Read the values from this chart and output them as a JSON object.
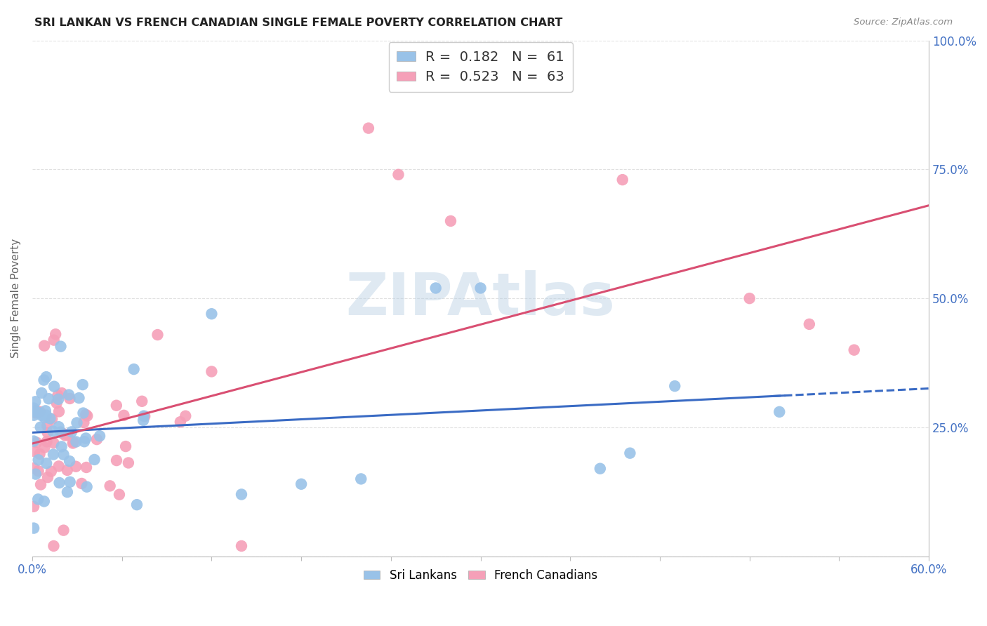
{
  "title": "SRI LANKAN VS FRENCH CANADIAN SINGLE FEMALE POVERTY CORRELATION CHART",
  "source": "Source: ZipAtlas.com",
  "ylabel": "Single Female Poverty",
  "xmin": 0.0,
  "xmax": 0.6,
  "ymin": 0.0,
  "ymax": 1.0,
  "sri_lanka_dot_color": "#99c2e8",
  "french_dot_color": "#f5a0b8",
  "sri_lanka_line_color": "#3a6bc4",
  "french_line_color": "#d94f72",
  "R_sri": 0.182,
  "N_sri": 61,
  "R_french": 0.523,
  "N_french": 63,
  "watermark": "ZIPAtlas",
  "background_color": "#ffffff",
  "grid_color": "#e0e0e0",
  "title_color": "#222222",
  "axis_tick_color": "#4472c4",
  "source_color": "#888888"
}
